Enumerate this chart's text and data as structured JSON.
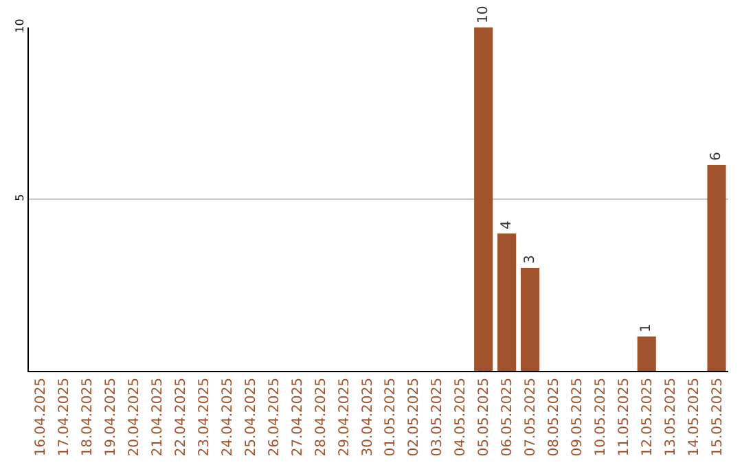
{
  "chart_data": {
    "type": "bar",
    "categories": [
      "16.04.2025",
      "17.04.2025",
      "18.04.2025",
      "19.04.2025",
      "20.04.2025",
      "21.04.2025",
      "22.04.2025",
      "23.04.2025",
      "24.04.2025",
      "25.04.2025",
      "26.04.2025",
      "27.04.2025",
      "28.04.2025",
      "29.04.2025",
      "30.04.2025",
      "01.05.2025",
      "02.05.2025",
      "03.05.2025",
      "04.05.2025",
      "05.05.2025",
      "06.05.2025",
      "07.05.2025",
      "08.05.2025",
      "09.05.2025",
      "10.05.2025",
      "11.05.2025",
      "12.05.2025",
      "13.05.2025",
      "14.05.2025",
      "15.05.2025"
    ],
    "values": [
      0,
      0,
      0,
      0,
      0,
      0,
      0,
      0,
      0,
      0,
      0,
      0,
      0,
      0,
      0,
      0,
      0,
      0,
      0,
      10,
      4,
      3,
      0,
      0,
      0,
      0,
      1,
      0,
      0,
      6
    ],
    "value_labels": [
      null,
      null,
      null,
      null,
      null,
      null,
      null,
      null,
      null,
      null,
      null,
      null,
      null,
      null,
      null,
      null,
      null,
      null,
      null,
      "10",
      "4",
      "3",
      null,
      null,
      null,
      null,
      "1",
      null,
      null,
      "6"
    ],
    "color": "#a0522d",
    "ylim": [
      0,
      10
    ],
    "yticks": [
      5,
      10
    ],
    "grid": "y"
  }
}
